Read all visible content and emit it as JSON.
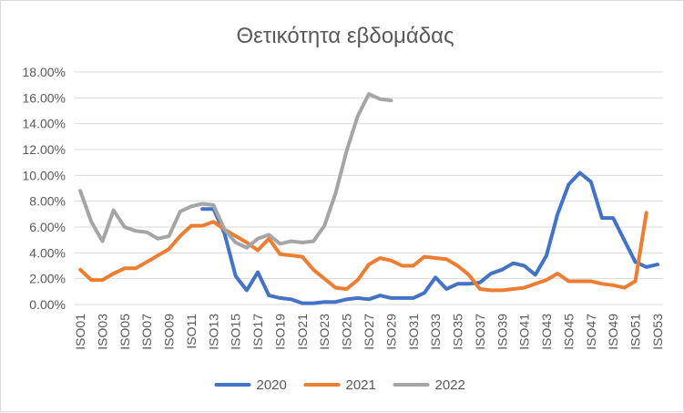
{
  "chart_data": {
    "type": "line",
    "title": "Θετικότητα εβδομάδας",
    "xlabel": "",
    "ylabel": "",
    "ylim": [
      0,
      0.18
    ],
    "y_ticks": [
      "0.00%",
      "2.00%",
      "4.00%",
      "6.00%",
      "8.00%",
      "10.00%",
      "12.00%",
      "14.00%",
      "16.00%",
      "18.00%"
    ],
    "grid": true,
    "legend_position": "bottom",
    "categories": [
      "ISO01",
      "ISO02",
      "ISO03",
      "ISO04",
      "ISO05",
      "ISO06",
      "ISO07",
      "ISO08",
      "ISO09",
      "ISO10",
      "ISO11",
      "ISO12",
      "ISO13",
      "ISO14",
      "ISO15",
      "ISO16",
      "ISO17",
      "ISO18",
      "ISO19",
      "ISO20",
      "ISO21",
      "ISO22",
      "ISO23",
      "ISO24",
      "ISO25",
      "ISO26",
      "ISO27",
      "ISO28",
      "ISO29",
      "ISO30",
      "ISO31",
      "ISO32",
      "ISO33",
      "ISO34",
      "ISO35",
      "ISO36",
      "ISO37",
      "ISO38",
      "ISO39",
      "ISO40",
      "ISO41",
      "ISO42",
      "ISO43",
      "ISO44",
      "ISO45",
      "ISO46",
      "ISO47",
      "ISO48",
      "ISO49",
      "ISO50",
      "ISO51",
      "ISO52",
      "ISO53"
    ],
    "x_tick_labels": [
      "ISO01",
      "ISO03",
      "ISO05",
      "ISO07",
      "ISO09",
      "ISO11",
      "ISO13",
      "ISO15",
      "ISO17",
      "ISO19",
      "ISO21",
      "ISO23",
      "ISO25",
      "ISO27",
      "ISO29",
      "ISO31",
      "ISO33",
      "ISO35",
      "ISO37",
      "ISO39",
      "ISO41",
      "ISO43",
      "ISO45",
      "ISO47",
      "ISO49",
      "ISO51",
      "ISO53"
    ],
    "series": [
      {
        "name": "2020",
        "color": "#4472C4",
        "values": [
          null,
          null,
          null,
          null,
          null,
          null,
          null,
          null,
          null,
          null,
          null,
          0.074,
          0.074,
          0.055,
          0.022,
          0.011,
          0.025,
          0.007,
          0.005,
          0.004,
          0.001,
          0.001,
          0.002,
          0.002,
          0.004,
          0.005,
          0.004,
          0.007,
          0.005,
          0.005,
          0.005,
          0.009,
          0.021,
          0.012,
          0.016,
          0.016,
          0.017,
          0.024,
          0.027,
          0.032,
          0.03,
          0.023,
          0.038,
          0.07,
          0.093,
          0.102,
          0.095,
          0.067,
          0.067,
          0.05,
          0.033,
          0.029,
          0.031
        ]
      },
      {
        "name": "2021",
        "color": "#ED7D31",
        "values": [
          0.027,
          0.019,
          0.019,
          0.024,
          0.028,
          0.028,
          0.033,
          0.038,
          0.043,
          0.053,
          0.061,
          0.061,
          0.064,
          0.058,
          0.053,
          0.048,
          0.042,
          0.051,
          0.039,
          0.038,
          0.037,
          0.027,
          0.02,
          0.013,
          0.012,
          0.019,
          0.031,
          0.036,
          0.034,
          0.03,
          0.03,
          0.037,
          0.036,
          0.035,
          0.03,
          0.023,
          0.012,
          0.011,
          0.011,
          0.012,
          0.013,
          0.016,
          0.019,
          0.024,
          0.018,
          0.018,
          0.018,
          0.016,
          0.015,
          0.013,
          0.018,
          0.071,
          null
        ]
      },
      {
        "name": "2022",
        "color": "#A5A5A5",
        "values": [
          0.088,
          0.064,
          0.049,
          0.073,
          0.06,
          0.057,
          0.056,
          0.051,
          0.053,
          0.072,
          0.076,
          0.078,
          0.077,
          0.058,
          0.048,
          0.044,
          0.051,
          0.054,
          0.047,
          0.049,
          0.048,
          0.049,
          0.061,
          0.086,
          0.119,
          0.146,
          0.163,
          0.159,
          0.158,
          null,
          null,
          null,
          null,
          null,
          null,
          null,
          null,
          null,
          null,
          null,
          null,
          null,
          null,
          null,
          null,
          null,
          null,
          null,
          null,
          null,
          null,
          null,
          null
        ]
      }
    ]
  }
}
